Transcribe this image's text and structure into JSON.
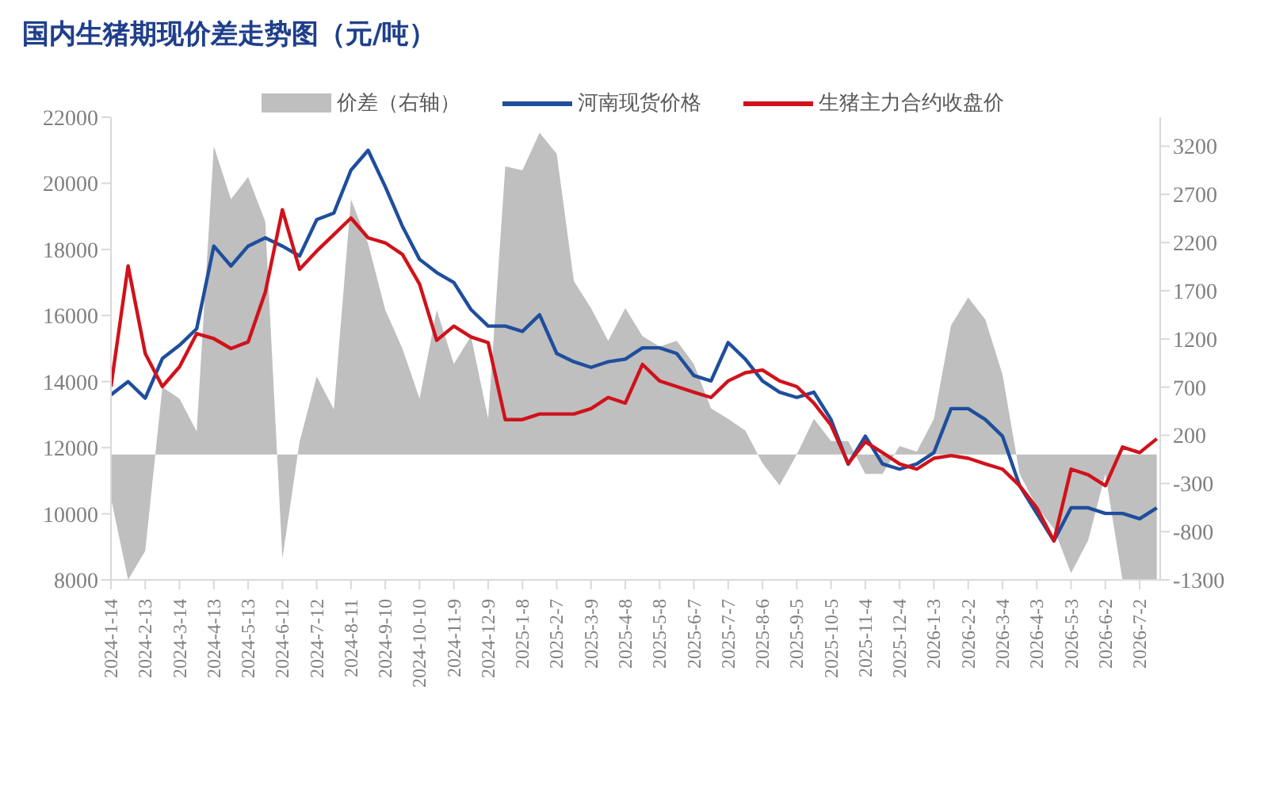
{
  "chart_data": {
    "type": "line",
    "title": "国内生猪期现价差走势图（元/吨）",
    "x": [
      "2024-01-14",
      "2024-01-29",
      "2024-02-13",
      "2024-02-28",
      "2024-03-14",
      "2024-03-29",
      "2024-04-13",
      "2024-04-28",
      "2024-05-13",
      "2024-05-28",
      "2024-06-12",
      "2024-06-27",
      "2024-07-12",
      "2024-07-27",
      "2024-08-11",
      "2024-08-26",
      "2024-09-10",
      "2024-09-25",
      "2024-10-10",
      "2024-10-25",
      "2024-11-09",
      "2024-11-24",
      "2024-12-09",
      "2024-12-24",
      "2025-01-08",
      "2025-01-23",
      "2025-02-07",
      "2025-02-22",
      "2025-03-09",
      "2025-03-24",
      "2025-04-08",
      "2025-04-23",
      "2025-05-08",
      "2025-05-23",
      "2025-06-07",
      "2025-06-22",
      "2025-07-07",
      "2025-07-22",
      "2025-08-06",
      "2025-08-21",
      "2025-09-05",
      "2025-09-20",
      "2025-10-05",
      "2025-10-20",
      "2025-11-04",
      "2025-11-19",
      "2025-12-04",
      "2025-12-19",
      "2026-01-03",
      "2026-01-18",
      "2026-02-02",
      "2026-02-17",
      "2026-03-04",
      "2026-03-19",
      "2026-04-03",
      "2026-04-18",
      "2026-05-03",
      "2026-05-18",
      "2026-06-02",
      "2026-06-17",
      "2026-07-02",
      "2026-07-17"
    ],
    "series": [
      {
        "name": "价差（右轴）",
        "type": "area",
        "axis": "y2",
        "color": "#bfbfbf",
        "values": [
          -450,
          -1300,
          -1000,
          700,
          580,
          240,
          3200,
          2650,
          2880,
          2420,
          -1080,
          130,
          810,
          470,
          2650,
          2190,
          1500,
          1100,
          580,
          1500,
          940,
          1230,
          370,
          2990,
          2950,
          3340,
          3120,
          1800,
          1520,
          1180,
          1520,
          1230,
          1120,
          1180,
          940,
          480,
          370,
          250,
          -90,
          -320,
          0,
          370,
          140,
          140,
          -200,
          -200,
          90,
          30,
          370,
          1340,
          1630,
          1400,
          830,
          -200,
          -540,
          -770,
          -1230,
          -890,
          -200,
          -1300,
          -1300,
          -1300
        ]
      },
      {
        "name": "河南现货价格",
        "color": "#1f4e9c",
        "values": [
          13600,
          14000,
          13500,
          14700,
          15100,
          15600,
          18100,
          17500,
          18100,
          18350,
          18100,
          17800,
          18900,
          19100,
          20400,
          21000,
          19900,
          18700,
          17700,
          17300,
          17000,
          16180,
          15680,
          15680,
          15520,
          16020,
          14850,
          14600,
          14430,
          14600,
          14680,
          15020,
          15020,
          14850,
          14180,
          14020,
          15180,
          14680,
          14020,
          13680,
          13520,
          13680,
          12850,
          11500,
          12350,
          11510,
          11350,
          11510,
          11850,
          13180,
          13180,
          12850,
          12350,
          10850,
          10010,
          9180,
          10180,
          10180,
          10010,
          10010,
          9850,
          10180
        ]
      },
      {
        "name": "生猪主力合约收盘价",
        "color": "#d0121b",
        "values": [
          13850,
          17500,
          14850,
          13850,
          14450,
          15450,
          15300,
          15000,
          15200,
          16700,
          19200,
          17400,
          17950,
          18450,
          18950,
          18350,
          18200,
          17850,
          16950,
          15250,
          15680,
          15350,
          15180,
          12850,
          12850,
          13020,
          13020,
          13020,
          13180,
          13520,
          13350,
          14520,
          14020,
          13850,
          13680,
          13520,
          14020,
          14270,
          14350,
          14020,
          13850,
          13350,
          12680,
          11520,
          12180,
          11850,
          11510,
          11350,
          11680,
          11760,
          11680,
          11510,
          11350,
          10850,
          10180,
          9180,
          11350,
          11180,
          10850,
          12020,
          11850,
          12270
        ]
      }
    ],
    "xlim": [
      "2024-01-14",
      "2026-07-20"
    ],
    "xticks": [
      {
        "value": "2024-01-14",
        "label": "2024-1-14"
      },
      {
        "value": "2024-02-13",
        "label": "2024-2-13"
      },
      {
        "value": "2024-03-14",
        "label": "2024-3-14"
      },
      {
        "value": "2024-04-13",
        "label": "2024-4-13"
      },
      {
        "value": "2024-05-13",
        "label": "2024-5-13"
      },
      {
        "value": "2024-06-12",
        "label": "2024-6-12"
      },
      {
        "value": "2024-07-12",
        "label": "2024-7-12"
      },
      {
        "value": "2024-08-11",
        "label": "2024-8-11"
      },
      {
        "value": "2024-09-10",
        "label": "2024-9-10"
      },
      {
        "value": "2024-10-10",
        "label": "2024-10-10"
      },
      {
        "value": "2024-11-09",
        "label": "2024-11-9"
      },
      {
        "value": "2024-12-09",
        "label": "2024-12-9"
      },
      {
        "value": "2025-01-08",
        "label": "2025-1-8"
      },
      {
        "value": "2025-02-07",
        "label": "2025-2-7"
      },
      {
        "value": "2025-03-09",
        "label": "2025-3-9"
      },
      {
        "value": "2025-04-08",
        "label": "2025-4-8"
      },
      {
        "value": "2025-05-08",
        "label": "2025-5-8"
      },
      {
        "value": "2025-06-07",
        "label": "2025-6-7"
      },
      {
        "value": "2025-07-07",
        "label": "2025-7-7"
      },
      {
        "value": "2025-08-06",
        "label": "2025-8-6"
      },
      {
        "value": "2025-09-05",
        "label": "2025-9-5"
      },
      {
        "value": "2025-10-05",
        "label": "2025-10-5"
      },
      {
        "value": "2025-11-04",
        "label": "2025-11-4"
      },
      {
        "value": "2025-12-04",
        "label": "2025-12-4"
      },
      {
        "value": "2026-01-03",
        "label": "2026-1-3"
      },
      {
        "value": "2026-02-02",
        "label": "2026-2-2"
      },
      {
        "value": "2026-03-04",
        "label": "2026-3-4"
      },
      {
        "value": "2026-04-03",
        "label": "2026-4-3"
      },
      {
        "value": "2026-05-03",
        "label": "2026-5-3"
      },
      {
        "value": "2026-06-02",
        "label": "2026-6-2"
      },
      {
        "value": "2026-07-02",
        "label": "2026-7-2"
      }
    ],
    "ylim": [
      8000,
      22000
    ],
    "yticks": [
      8000,
      10000,
      12000,
      14000,
      16000,
      18000,
      20000,
      22000
    ],
    "y2lim": [
      -1300,
      3500
    ],
    "y2ticks": [
      -1300,
      -800,
      -300,
      200,
      700,
      1200,
      1700,
      2200,
      2700,
      3200
    ],
    "legend": "top",
    "grid": false,
    "marker": "none",
    "line_style": "solid"
  }
}
